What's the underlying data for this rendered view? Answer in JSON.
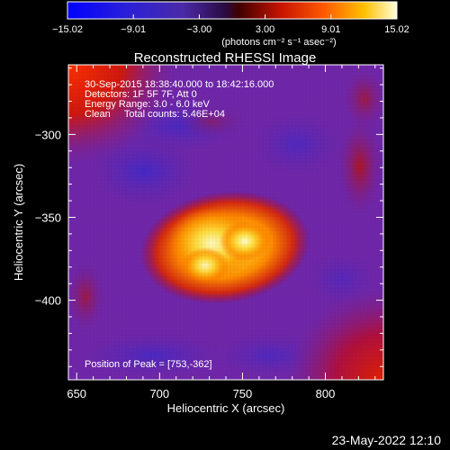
{
  "colorbar": {
    "ticks": [
      "−15.02",
      "−9.01",
      "−3.00",
      "3.00",
      "9.01",
      "15.02"
    ],
    "units": "(photons cm⁻² s⁻¹ asec⁻²)"
  },
  "title": "Reconstructed RHESSI Image",
  "info": {
    "time_range": "30-Sep-2015 18:38:40.000 to 18:42:16.000",
    "detectors": "Detectors: 1F 5F 7F, Att 0",
    "energy": "Energy Range: 3.0 - 6.0 keV",
    "method_counts": "Clean     Total counts: 5.46E+04",
    "peak": "Position of Peak = [753,-362]"
  },
  "axes": {
    "xlabel": "Heliocentric X (arcsec)",
    "ylabel": "Heliocentric Y (arcsec)",
    "xlim": [
      645,
      835
    ],
    "ylim": [
      -448,
      -258
    ],
    "xticks": [
      650,
      700,
      750,
      800
    ],
    "yticks": [
      -300,
      -350,
      -400
    ]
  },
  "footer_date": "23-May-2022 12:10",
  "colors": {
    "background": "#000000",
    "text": "#ffffff",
    "colormap_low": "#0000ff",
    "colormap_mid_neg": "#6a2aa8",
    "colormap_mid_pos": "#ff2a00",
    "colormap_high": "#ffffc8"
  }
}
